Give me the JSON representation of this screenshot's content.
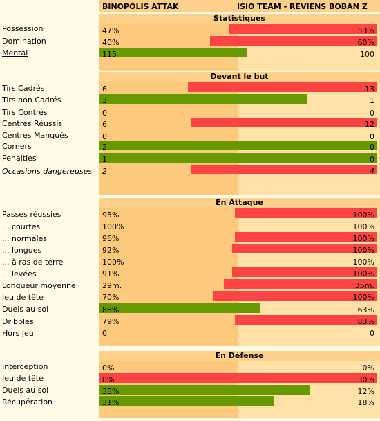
{
  "teams": {
    "home": "BINOPOLIS ATTAK",
    "away": "ISIO TEAM - REVIENS BOBAN Z"
  },
  "sections": [
    {
      "title": "Statistiques",
      "rows": [
        {
          "label": "Possession",
          "left": "47%",
          "right": "53%",
          "bar": {
            "color": "red",
            "side": "right",
            "fraction": 0.53
          }
        },
        {
          "label": "Domination",
          "left": "40%",
          "right": "60%",
          "bar": {
            "color": "red",
            "side": "right",
            "fraction": 0.6
          }
        },
        {
          "label": "Mental",
          "left": "115",
          "right": "100",
          "underline": true,
          "bar": {
            "color": "green",
            "side": "left",
            "fraction": 0.53
          }
        }
      ]
    },
    {
      "title": "Devant le but",
      "rows": [
        {
          "label": "Tirs Cadrés",
          "left": "6",
          "right": "13",
          "bar": {
            "color": "red",
            "side": "right",
            "fraction": 0.68
          }
        },
        {
          "label": "Tirs non Cadrés",
          "left": "3",
          "right": "1",
          "bar": {
            "color": "green",
            "side": "left",
            "fraction": 0.75
          }
        },
        {
          "label": "Tirs Contrés",
          "left": "0",
          "right": "0"
        },
        {
          "label": "Centres Réussis",
          "left": "6",
          "right": "12",
          "bar": {
            "color": "red",
            "side": "right",
            "fraction": 0.67
          }
        },
        {
          "label": "Centres Manqués",
          "left": "0",
          "right": "0"
        },
        {
          "label": "Corners",
          "left": "2",
          "right": "0",
          "bar": {
            "color": "green",
            "side": "left",
            "fraction": 1.0
          }
        },
        {
          "label": "Penalties",
          "left": "1",
          "right": "0",
          "bar": {
            "color": "green",
            "side": "left",
            "fraction": 1.0
          }
        },
        {
          "label": "Occasions dangereuses",
          "left": "2",
          "right": "4",
          "italic": true,
          "bar": {
            "color": "red",
            "side": "right",
            "fraction": 0.67
          }
        }
      ]
    },
    {
      "title": "En Attaque",
      "rows": [
        {
          "label": "Passes réussies",
          "left": "95%",
          "right": "100%",
          "bar": {
            "color": "red",
            "side": "right",
            "fraction": 0.51
          }
        },
        {
          "label": "... courtes",
          "left": "100%",
          "right": "100%"
        },
        {
          "label": "... normales",
          "left": "96%",
          "right": "100%",
          "bar": {
            "color": "red",
            "side": "right",
            "fraction": 0.51
          }
        },
        {
          "label": "... longues",
          "left": "92%",
          "right": "100%",
          "bar": {
            "color": "red",
            "side": "right",
            "fraction": 0.52
          }
        },
        {
          "label": "... à ras de terre",
          "left": "100%",
          "right": "100%"
        },
        {
          "label": "... levées",
          "left": "91%",
          "right": "100%",
          "bar": {
            "color": "red",
            "side": "right",
            "fraction": 0.52
          }
        },
        {
          "label": "Longueur moyenne",
          "left": "29m.",
          "right": "35m.",
          "bar": {
            "color": "red",
            "side": "right",
            "fraction": 0.55
          }
        },
        {
          "label": "Jeu de tête",
          "left": "70%",
          "right": "100%",
          "bar": {
            "color": "red",
            "side": "right",
            "fraction": 0.59
          }
        },
        {
          "label": "Duels au sol",
          "left": "88%",
          "right": "63%",
          "bar": {
            "color": "green",
            "side": "left",
            "fraction": 0.58
          }
        },
        {
          "label": "Dribbles",
          "left": "79%",
          "right": "83%",
          "bar": {
            "color": "red",
            "side": "right",
            "fraction": 0.51
          }
        },
        {
          "label": "Hors Jeu",
          "left": "0",
          "right": "0"
        }
      ]
    },
    {
      "title": "En Défense",
      "rows": [
        {
          "label": "Interception",
          "left": "0%",
          "right": "0%"
        },
        {
          "label": "Jeu de tête",
          "left": "0%",
          "right": "30%",
          "bar": {
            "color": "red",
            "side": "right",
            "fraction": 1.0
          }
        },
        {
          "label": "Duels au sol",
          "left": "38%",
          "right": "12%",
          "bar": {
            "color": "green",
            "side": "left",
            "fraction": 0.76
          }
        },
        {
          "label": "Récupération",
          "left": "31%",
          "right": "18%",
          "bar": {
            "color": "green",
            "side": "left",
            "fraction": 0.63
          }
        }
      ]
    }
  ],
  "colors": {
    "red": "#ff4444",
    "green": "#669900",
    "header": "#ffd08a",
    "left_col": "#fdc97c",
    "right_col": "#ffe1a8",
    "page": "#fffbe6"
  }
}
